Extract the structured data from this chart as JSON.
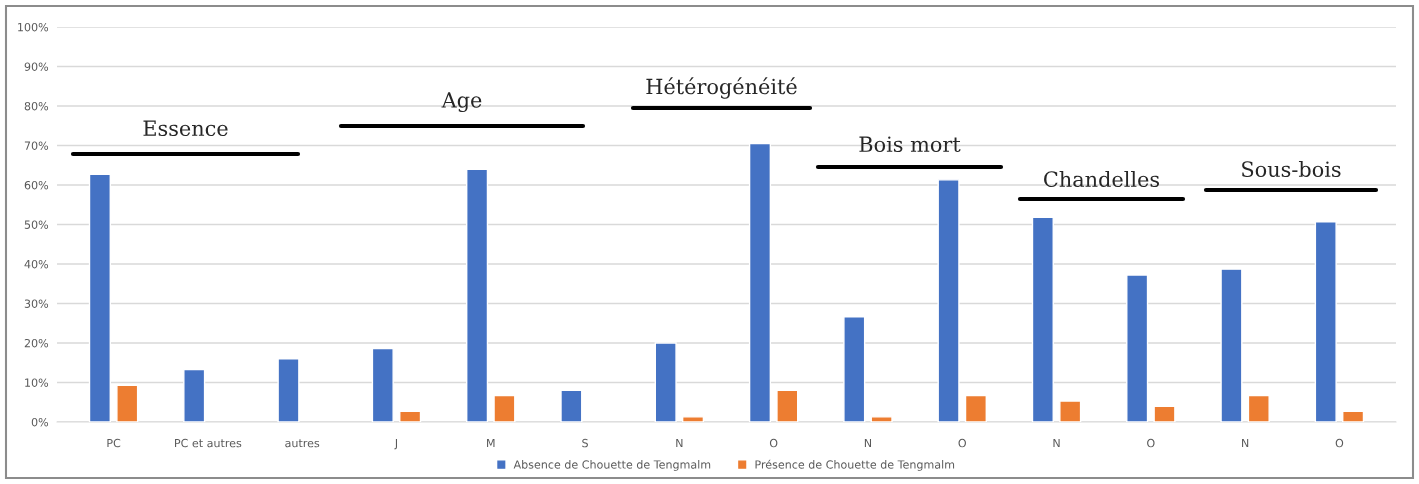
{
  "chart_data": {
    "type": "bar",
    "categories": [
      "PC",
      "PC et autres",
      "autres",
      "J",
      "M",
      "S",
      "N",
      "O",
      "N",
      "O",
      "N",
      "O",
      "N",
      "O"
    ],
    "series": [
      {
        "name": "Absence de Chouette de Tengmalm",
        "color": "#4472c4",
        "values": [
          62.7,
          13.3,
          16,
          18.6,
          64,
          8,
          20,
          70.5,
          26.6,
          61.3,
          51.8,
          37.2,
          38.7,
          50.7
        ]
      },
      {
        "name": "Présence de Chouette de Tengmalm",
        "color": "#ed7d31",
        "values": [
          9.3,
          null,
          null,
          2.7,
          6.7,
          null,
          1.3,
          8,
          1.3,
          6.7,
          5.3,
          4,
          6.7,
          2.7
        ]
      }
    ],
    "ylim": [
      0,
      100
    ],
    "yticks": [
      {
        "value": 0,
        "label": "0%"
      },
      {
        "value": 10,
        "label": "10%"
      },
      {
        "value": 20,
        "label": "20%"
      },
      {
        "value": 30,
        "label": "30%"
      },
      {
        "value": 40,
        "label": "40%"
      },
      {
        "value": 50,
        "label": "50%"
      },
      {
        "value": 60,
        "label": "60%"
      },
      {
        "value": 70,
        "label": "70%"
      },
      {
        "value": 80,
        "label": "80%"
      },
      {
        "value": 90,
        "label": "90%"
      },
      {
        "value": 100,
        "label": "100%"
      }
    ],
    "grid": "y",
    "legend": "bottom",
    "annotations": [
      "Essence",
      "Age",
      "Hétérogénéité",
      "Bois mort",
      "Chandelles",
      "Sous-bois"
    ]
  }
}
